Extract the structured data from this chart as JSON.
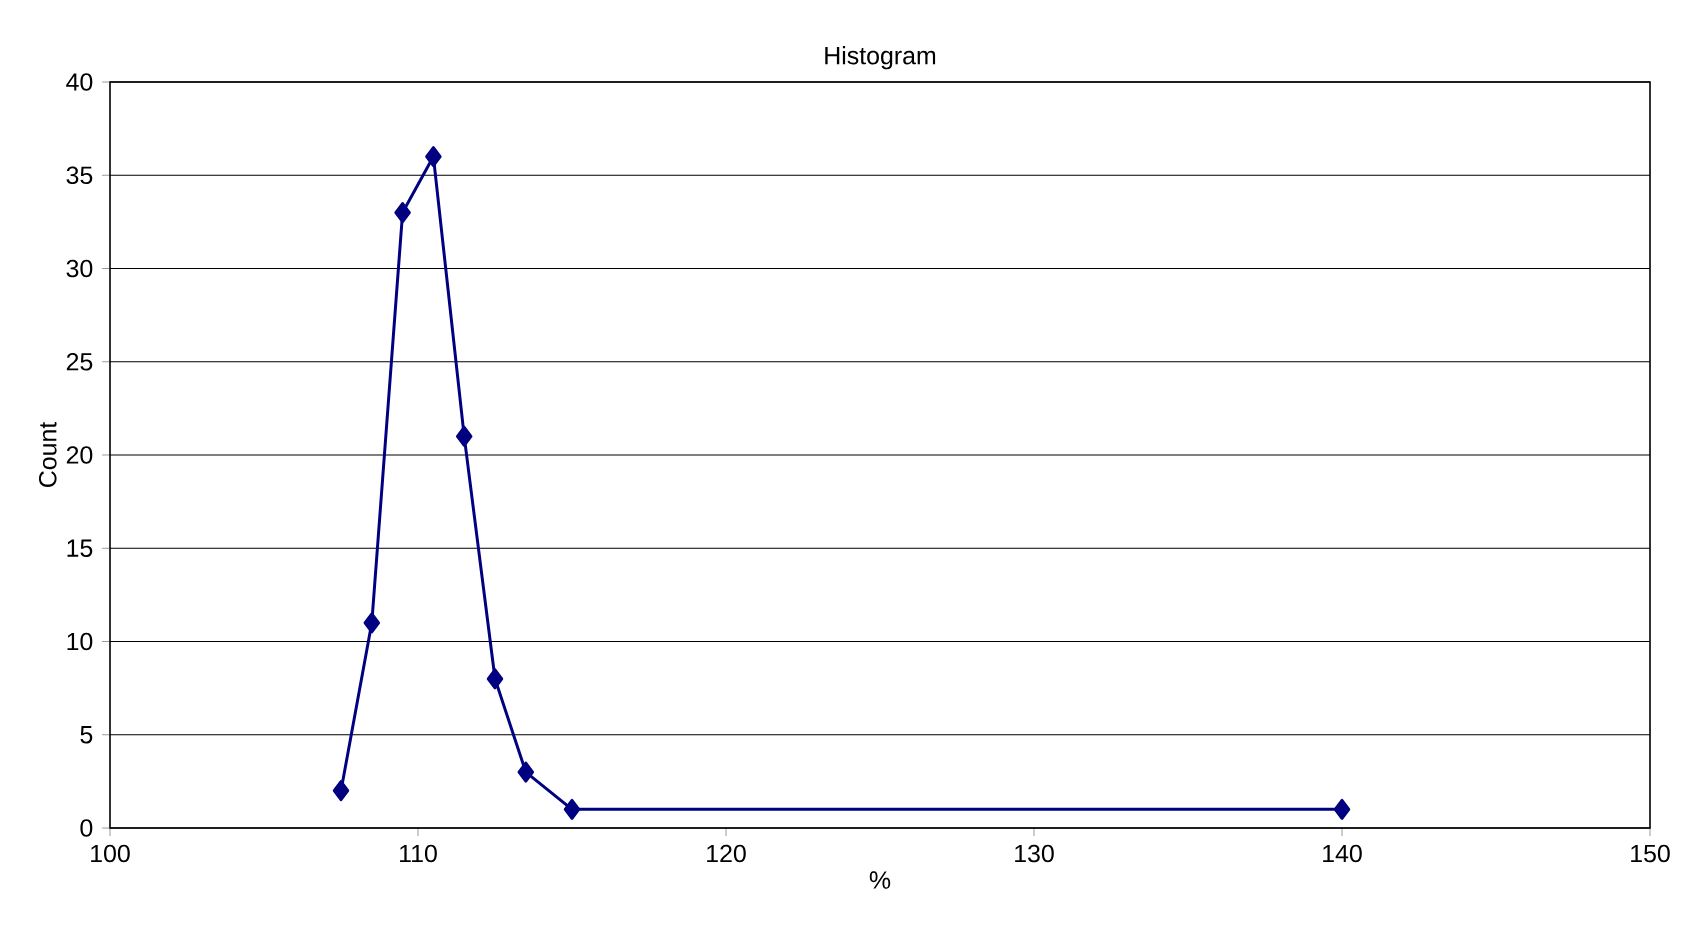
{
  "chart_data": {
    "type": "line",
    "title": "Histogram",
    "xlabel": "%",
    "ylabel": "Count",
    "x": [
      107.5,
      108.5,
      109.5,
      110.5,
      111.5,
      112.5,
      113.5,
      115,
      140
    ],
    "series": [
      {
        "color": "#000080",
        "values": [
          2,
          11,
          33,
          36,
          21,
          8,
          3,
          1,
          1
        ]
      }
    ],
    "xlim": [
      100,
      150
    ],
    "xticks": [
      100,
      110,
      120,
      130,
      140,
      150
    ],
    "ylim": [
      0,
      40
    ],
    "yticks": [
      0,
      5,
      10,
      15,
      20,
      25,
      30,
      35,
      40
    ],
    "grid": "y",
    "marker": "diamond",
    "line_style": "solid"
  }
}
